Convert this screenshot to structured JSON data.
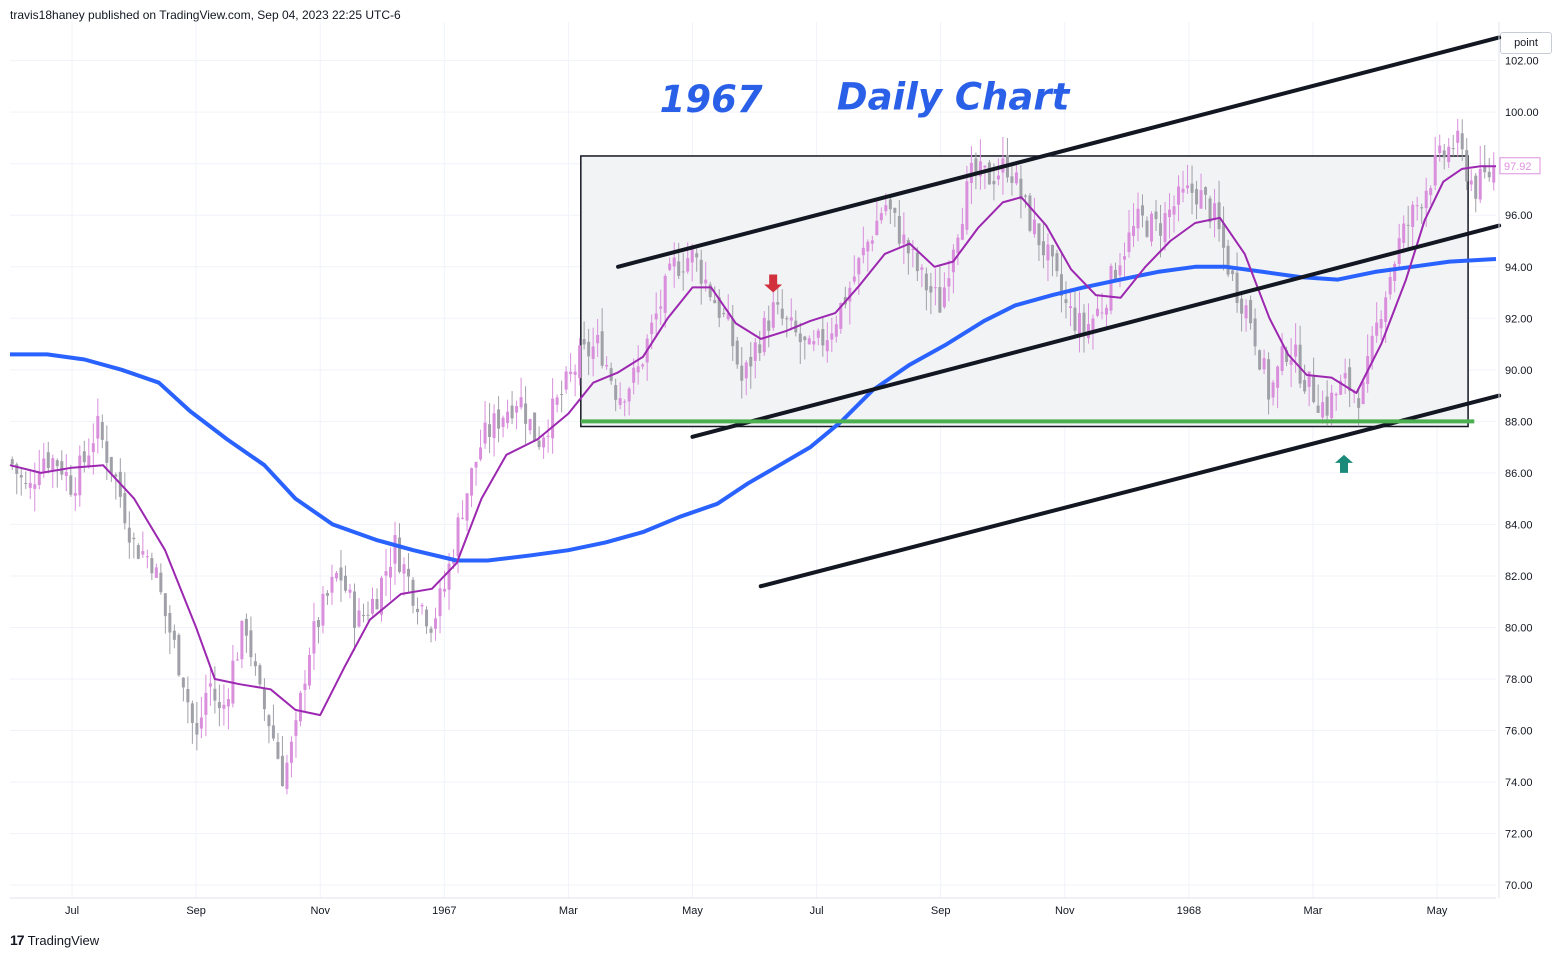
{
  "header": {
    "published": "travis18haney published on TradingView.com, Sep 04, 2023 22:25 UTC-6"
  },
  "footer": {
    "brand": "TradingView",
    "logo_icon": "tradingview-logo-icon"
  },
  "scale_button": {
    "label": "point"
  },
  "chart_data": {
    "type": "candlestick",
    "x_unit": "months since Jun 1966 (Jul 1966 = 1)",
    "x_tick_labels": [
      {
        "x": 1,
        "label": "Jul"
      },
      {
        "x": 3,
        "label": "Sep"
      },
      {
        "x": 5,
        "label": "Nov"
      },
      {
        "x": 7,
        "label": "1967"
      },
      {
        "x": 9,
        "label": "Mar"
      },
      {
        "x": 11,
        "label": "May"
      },
      {
        "x": 13,
        "label": "Jul"
      },
      {
        "x": 15,
        "label": "Sep"
      },
      {
        "x": 17,
        "label": "Nov"
      },
      {
        "x": 19,
        "label": "1968"
      },
      {
        "x": 21,
        "label": "Mar"
      },
      {
        "x": 23,
        "label": "May"
      }
    ],
    "y_ticks": [
      70,
      72,
      74,
      76,
      78,
      80,
      82,
      84,
      86,
      88,
      90,
      92,
      94,
      96,
      98,
      100,
      102
    ],
    "y_tick_labels": [
      "70.00",
      "72.00",
      "74.00",
      "76.00",
      "78.00",
      "80.00",
      "82.00",
      "84.00",
      "86.00",
      "88.00",
      "90.00",
      "92.00",
      "94.00",
      "96.00",
      "98.00",
      "100.00",
      "102.00"
    ],
    "ylim": [
      69.5,
      103.5
    ],
    "xlim": [
      0.0,
      23.95
    ],
    "last_price": {
      "value": 97.92,
      "label": "97.92",
      "color": "#e091e0"
    },
    "price_path": [
      [
        0.0,
        86.5
      ],
      [
        0.3,
        85.2
      ],
      [
        0.5,
        86.7
      ],
      [
        0.8,
        86.4
      ],
      [
        1.0,
        85.5
      ],
      [
        1.2,
        86.5
      ],
      [
        1.4,
        87.8
      ],
      [
        1.7,
        85.8
      ],
      [
        2.0,
        83.2
      ],
      [
        2.3,
        82.6
      ],
      [
        2.5,
        80.5
      ],
      [
        2.8,
        78.0
      ],
      [
        3.0,
        75.5
      ],
      [
        3.2,
        78.0
      ],
      [
        3.4,
        76.5
      ],
      [
        3.6,
        78.6
      ],
      [
        3.8,
        80.2
      ],
      [
        4.0,
        77.5
      ],
      [
        4.2,
        76.2
      ],
      [
        4.4,
        74.2
      ],
      [
        4.6,
        75.8
      ],
      [
        4.8,
        79.0
      ],
      [
        5.0,
        80.5
      ],
      [
        5.3,
        82.2
      ],
      [
        5.6,
        80.2
      ],
      [
        5.9,
        81.2
      ],
      [
        6.2,
        83.2
      ],
      [
        6.5,
        81.4
      ],
      [
        6.8,
        80.2
      ],
      [
        7.0,
        81.5
      ],
      [
        7.3,
        84.8
      ],
      [
        7.6,
        87.2
      ],
      [
        7.9,
        88.2
      ],
      [
        8.2,
        89.0
      ],
      [
        8.5,
        87.2
      ],
      [
        8.8,
        88.6
      ],
      [
        9.2,
        90.5
      ],
      [
        9.5,
        91.0
      ],
      [
        9.8,
        89.0
      ],
      [
        10.1,
        89.8
      ],
      [
        10.4,
        92.0
      ],
      [
        10.7,
        94.0
      ],
      [
        11.0,
        94.5
      ],
      [
        11.3,
        93.0
      ],
      [
        11.6,
        91.5
      ],
      [
        11.8,
        89.5
      ],
      [
        12.0,
        90.8
      ],
      [
        12.3,
        92.3
      ],
      [
        12.6,
        91.5
      ],
      [
        12.9,
        90.6
      ],
      [
        13.2,
        91.5
      ],
      [
        13.5,
        93.0
      ],
      [
        13.8,
        94.8
      ],
      [
        14.1,
        96.5
      ],
      [
        14.4,
        95.0
      ],
      [
        14.7,
        93.5
      ],
      [
        15.0,
        92.5
      ],
      [
        15.2,
        95.0
      ],
      [
        15.5,
        97.5
      ],
      [
        15.8,
        97.5
      ],
      [
        16.1,
        98.0
      ],
      [
        16.4,
        96.0
      ],
      [
        16.7,
        94.5
      ],
      [
        17.0,
        92.5
      ],
      [
        17.3,
        91.5
      ],
      [
        17.6,
        92.5
      ],
      [
        17.9,
        94.5
      ],
      [
        18.2,
        95.8
      ],
      [
        18.5,
        95.5
      ],
      [
        18.8,
        96.5
      ],
      [
        19.1,
        97.0
      ],
      [
        19.4,
        96.0
      ],
      [
        19.7,
        93.5
      ],
      [
        20.0,
        92.0
      ],
      [
        20.3,
        89.0
      ],
      [
        20.6,
        91.0
      ],
      [
        20.9,
        89.5
      ],
      [
        21.2,
        88.5
      ],
      [
        21.5,
        89.5
      ],
      [
        21.8,
        89.0
      ],
      [
        22.1,
        92.5
      ],
      [
        22.4,
        95.0
      ],
      [
        22.7,
        96.5
      ],
      [
        23.0,
        98.0
      ],
      [
        23.3,
        98.9
      ],
      [
        23.6,
        97.0
      ],
      [
        23.95,
        97.9
      ]
    ],
    "ma_short": [
      [
        0.0,
        86.3
      ],
      [
        0.5,
        86.0
      ],
      [
        1.0,
        86.2
      ],
      [
        1.5,
        86.3
      ],
      [
        2.0,
        85.0
      ],
      [
        2.5,
        83.0
      ],
      [
        3.0,
        80.0
      ],
      [
        3.3,
        78.0
      ],
      [
        3.7,
        77.8
      ],
      [
        4.2,
        77.6
      ],
      [
        4.6,
        76.8
      ],
      [
        5.0,
        76.6
      ],
      [
        5.4,
        78.5
      ],
      [
        5.8,
        80.3
      ],
      [
        6.3,
        81.3
      ],
      [
        6.8,
        81.5
      ],
      [
        7.2,
        82.5
      ],
      [
        7.6,
        85.0
      ],
      [
        8.0,
        86.7
      ],
      [
        8.5,
        87.3
      ],
      [
        9.0,
        88.3
      ],
      [
        9.4,
        89.5
      ],
      [
        9.8,
        89.9
      ],
      [
        10.2,
        90.5
      ],
      [
        10.6,
        92.0
      ],
      [
        11.0,
        93.2
      ],
      [
        11.3,
        93.2
      ],
      [
        11.7,
        91.8
      ],
      [
        12.1,
        91.2
      ],
      [
        12.5,
        91.5
      ],
      [
        12.9,
        91.9
      ],
      [
        13.3,
        92.2
      ],
      [
        13.7,
        93.3
      ],
      [
        14.1,
        94.5
      ],
      [
        14.5,
        94.9
      ],
      [
        14.9,
        94.0
      ],
      [
        15.2,
        94.2
      ],
      [
        15.6,
        95.5
      ],
      [
        16.0,
        96.5
      ],
      [
        16.3,
        96.7
      ],
      [
        16.7,
        95.6
      ],
      [
        17.1,
        93.9
      ],
      [
        17.5,
        92.9
      ],
      [
        17.9,
        92.8
      ],
      [
        18.3,
        94.0
      ],
      [
        18.7,
        95.0
      ],
      [
        19.1,
        95.7
      ],
      [
        19.5,
        95.9
      ],
      [
        19.9,
        94.5
      ],
      [
        20.3,
        92.0
      ],
      [
        20.6,
        90.6
      ],
      [
        20.9,
        89.8
      ],
      [
        21.3,
        89.7
      ],
      [
        21.7,
        89.1
      ],
      [
        22.1,
        91.0
      ],
      [
        22.5,
        93.5
      ],
      [
        22.8,
        95.8
      ],
      [
        23.1,
        97.3
      ],
      [
        23.4,
        97.8
      ],
      [
        23.7,
        97.9
      ],
      [
        23.95,
        97.9
      ]
    ],
    "ma_long": [
      [
        0.0,
        90.6
      ],
      [
        0.6,
        90.6
      ],
      [
        1.2,
        90.4
      ],
      [
        1.8,
        90.0
      ],
      [
        2.4,
        89.5
      ],
      [
        2.9,
        88.4
      ],
      [
        3.5,
        87.3
      ],
      [
        4.1,
        86.3
      ],
      [
        4.6,
        85.0
      ],
      [
        5.2,
        84.0
      ],
      [
        5.9,
        83.4
      ],
      [
        6.5,
        83.0
      ],
      [
        7.2,
        82.6
      ],
      [
        7.7,
        82.6
      ],
      [
        8.4,
        82.8
      ],
      [
        9.0,
        83.0
      ],
      [
        9.6,
        83.3
      ],
      [
        10.2,
        83.7
      ],
      [
        10.8,
        84.3
      ],
      [
        11.4,
        84.8
      ],
      [
        11.9,
        85.6
      ],
      [
        12.4,
        86.3
      ],
      [
        12.9,
        87.0
      ],
      [
        13.4,
        88.0
      ],
      [
        13.9,
        89.2
      ],
      [
        14.5,
        90.2
      ],
      [
        15.1,
        91.0
      ],
      [
        15.7,
        91.9
      ],
      [
        16.2,
        92.5
      ],
      [
        16.8,
        92.9
      ],
      [
        17.3,
        93.2
      ],
      [
        17.9,
        93.5
      ],
      [
        18.5,
        93.8
      ],
      [
        19.1,
        94.0
      ],
      [
        19.6,
        94.0
      ],
      [
        20.2,
        93.8
      ],
      [
        20.8,
        93.6
      ],
      [
        21.4,
        93.5
      ],
      [
        22.0,
        93.8
      ],
      [
        22.6,
        94.0
      ],
      [
        23.2,
        94.2
      ],
      [
        23.95,
        94.3
      ]
    ],
    "channel_lines": [
      {
        "from": [
          9.8,
          94.0
        ],
        "to": [
          24.0,
          102.9
        ]
      },
      {
        "from": [
          11.0,
          87.4
        ],
        "to": [
          24.0,
          95.6
        ]
      },
      {
        "from": [
          12.1,
          81.6
        ],
        "to": [
          24.0,
          89.0
        ]
      }
    ],
    "range_box": {
      "x0": 9.2,
      "x1": 23.5,
      "y_low": 87.8,
      "y_high": 98.3
    },
    "support_level": {
      "value": 88.0,
      "x0": 9.2,
      "x1": 23.6
    },
    "arrows": [
      {
        "type": "down",
        "x": 12.3,
        "y": 93.0,
        "color": "#d0313c"
      },
      {
        "type": "up",
        "x": 21.5,
        "y": 86.7,
        "color": "#1a8a7a"
      }
    ],
    "annotations": [
      {
        "text": "1967",
        "x": 11.3,
        "y": 100.0
      },
      {
        "text": "Daily Chart",
        "x": 15.2,
        "y": 100.1
      }
    ],
    "colors": {
      "up": "#d98fdc",
      "down": "#a0a0a8",
      "ma_short": "#9c27b0",
      "ma_long": "#2962ff",
      "channel": "#131722",
      "support": "#4caf50",
      "box_fill": "#f2f3f5"
    }
  }
}
